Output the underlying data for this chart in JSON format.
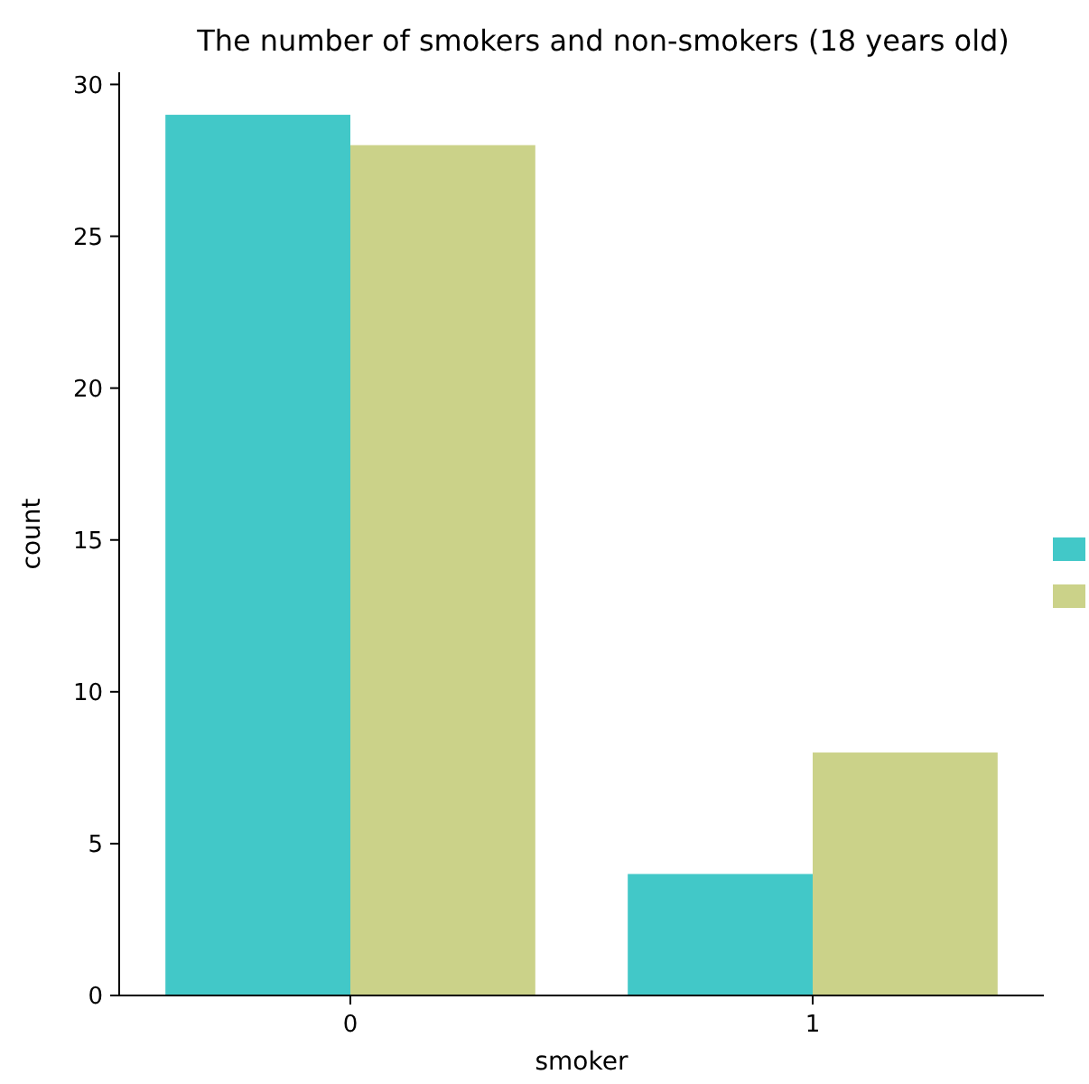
{
  "chart_data": {
    "type": "bar",
    "title": "The number of smokers and non-smokers (18 years old)",
    "xlabel": "smoker",
    "ylabel": "count",
    "categories": [
      "0",
      "1"
    ],
    "series": [
      {
        "color": "#42c8c8",
        "values": [
          29,
          4
        ]
      },
      {
        "color": "#cbd289",
        "values": [
          28,
          8
        ]
      }
    ],
    "ylim": [
      0,
      30.4
    ],
    "yticks": [
      0,
      5,
      10,
      15,
      20,
      25,
      30
    ],
    "grid": false
  }
}
